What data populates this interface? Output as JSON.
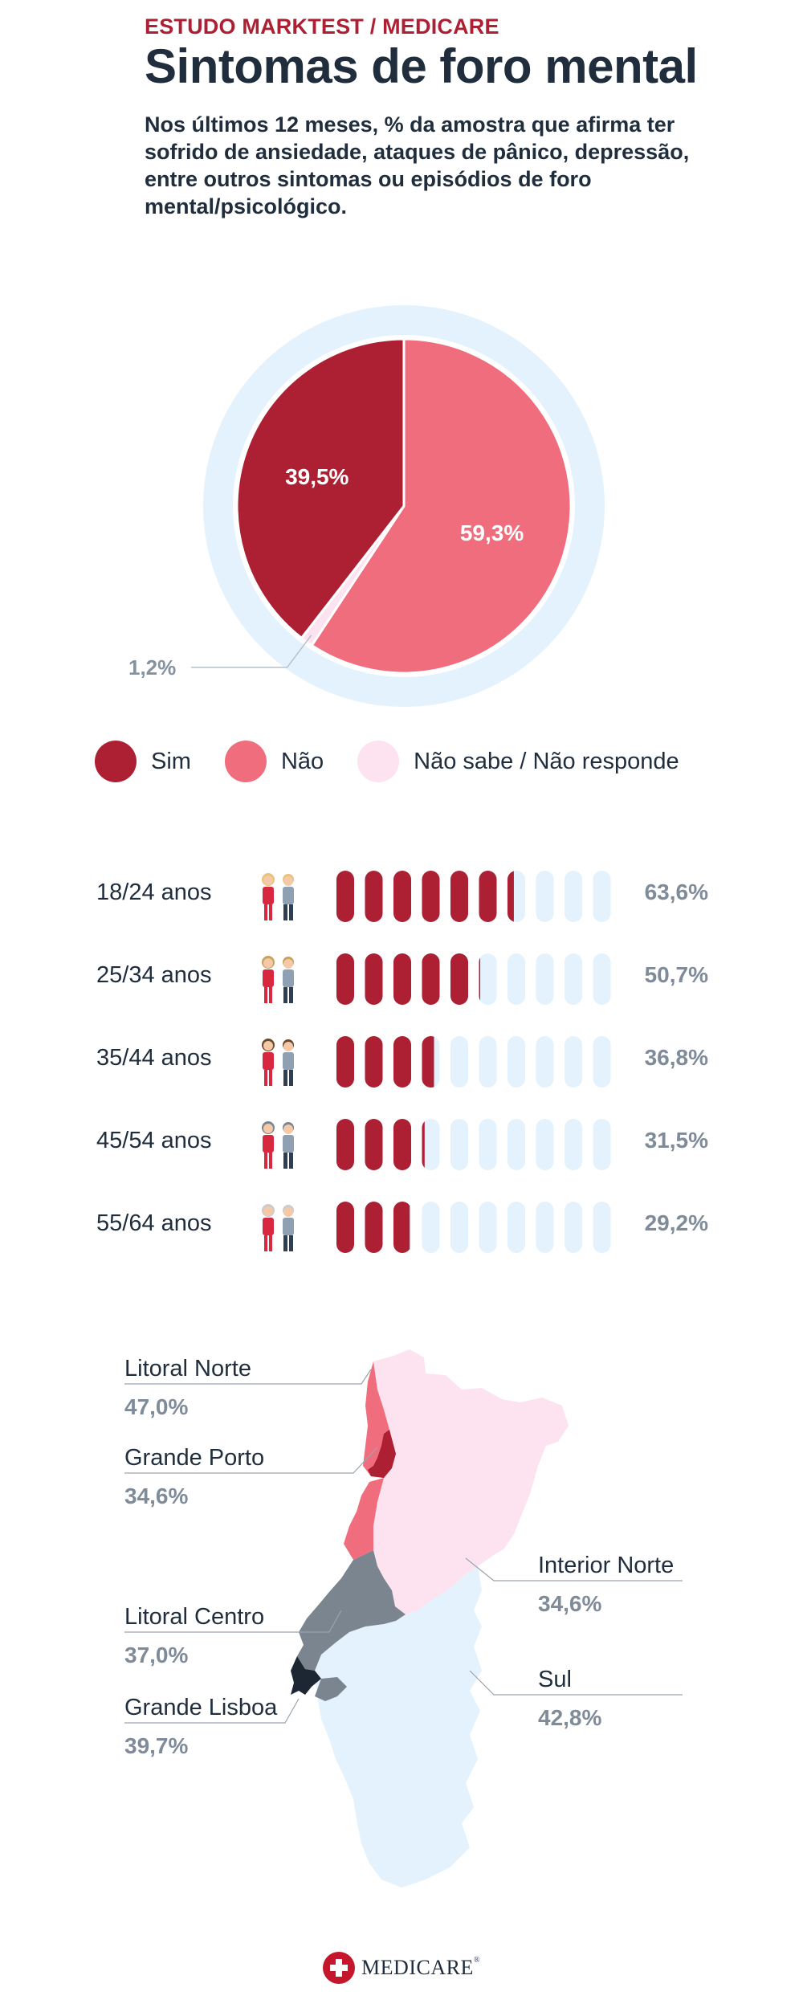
{
  "header": {
    "kicker": "ESTUDO MARKTEST / MEDICARE",
    "title": "Sintomas de foro mental",
    "subtitle": "Nos últimos 12 meses, % da amostra que afirma ter sofrido de ansiedade, ataques de pânico, depressão, entre outros sintomas ou episódios de foro mental/psicológico."
  },
  "colors": {
    "sim": "#ad1f32",
    "nao": "#f06d7e",
    "nsnr": "#fde3f0",
    "ring": "#e3f2fc",
    "pill_empty": "#e3f2fc",
    "litoral_centro": "#7a8590",
    "grande_lisboa": "#1d2733"
  },
  "chart_data": [
    {
      "type": "pie",
      "slices": [
        {
          "label": "Sim",
          "value": 39.5,
          "display": "39,5%",
          "color": "#ad1f32"
        },
        {
          "label": "Não",
          "value": 59.3,
          "display": "59,3%",
          "color": "#f06d7e"
        },
        {
          "label": "Não sabe / Não responde",
          "value": 1.2,
          "display": "1,2%",
          "color": "#fde3f0"
        }
      ],
      "legend": [
        "Sim",
        "Não",
        "Não sabe / Não responde"
      ]
    },
    {
      "type": "bar",
      "categories": [
        "18/24 anos",
        "25/34 anos",
        "35/44 anos",
        "45/54 anos",
        "55/64 anos"
      ],
      "values": [
        63.6,
        50.7,
        36.8,
        31.5,
        29.2
      ],
      "display": [
        "63,6%",
        "50,7%",
        "36,8%",
        "31,5%",
        "29,2%"
      ],
      "max": 100,
      "pill_count": 10
    },
    {
      "type": "map",
      "regions": [
        {
          "name": "Litoral Norte",
          "value": 47.0,
          "display": "47,0%"
        },
        {
          "name": "Grande Porto",
          "value": 34.6,
          "display": "34,6%"
        },
        {
          "name": "Interior Norte",
          "value": 34.6,
          "display": "34,6%"
        },
        {
          "name": "Litoral Centro",
          "value": 37.0,
          "display": "37,0%"
        },
        {
          "name": "Grande Lisboa",
          "value": 39.7,
          "display": "39,7%"
        },
        {
          "name": "Sul",
          "value": 42.8,
          "display": "42,8%"
        }
      ]
    }
  ],
  "footer": {
    "logo": "MEDICARE",
    "reg": "®"
  }
}
